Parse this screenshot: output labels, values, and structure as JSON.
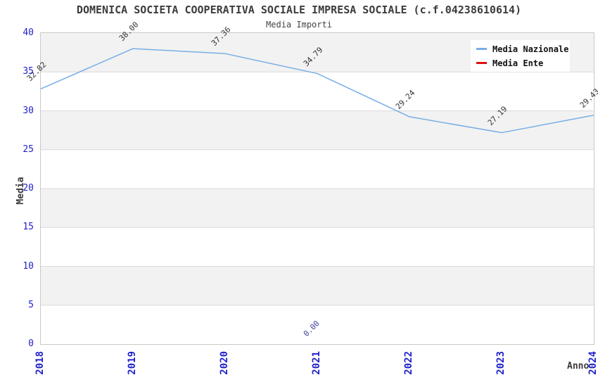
{
  "chart_data": {
    "type": "line",
    "title": "DOMENICA SOCIETA COOPERATIVA SOCIALE IMPRESA SOCIALE (c.f.04238610614)",
    "subtitle": "Media Importi",
    "xlabel": "Anno",
    "ylabel": "Media",
    "x": [
      "2018",
      "2019",
      "2020",
      "2021",
      "2022",
      "2023",
      "2024"
    ],
    "ylim": [
      0,
      40
    ],
    "ytick_step": 5,
    "grid": "horizontal-bands",
    "legend_position": "top-right-inside",
    "series": [
      {
        "name": "Media Nazionale",
        "color": "#79aee6",
        "values": [
          32.82,
          38.0,
          37.36,
          34.79,
          29.24,
          27.19,
          29.43
        ],
        "point_labels": [
          "32.82",
          "38.00",
          "37.36",
          "34.79",
          "29.24",
          "27.19",
          "29.43"
        ],
        "label_color": "#333333"
      },
      {
        "name": "Media Ente",
        "color": "#e01010",
        "values": [
          null,
          null,
          null,
          0.0,
          null,
          null,
          null
        ],
        "point_labels": [
          null,
          null,
          null,
          "0.00",
          null,
          null,
          null
        ],
        "label_color": "#3f3f99"
      }
    ]
  },
  "colors": {
    "band_gray": "#f2f2f2",
    "band_white": "#ffffff",
    "gridline": "#dadada",
    "plot_border": "#c8c8c8",
    "tick_label": "#2222cc",
    "text": "#3c3c3c"
  }
}
